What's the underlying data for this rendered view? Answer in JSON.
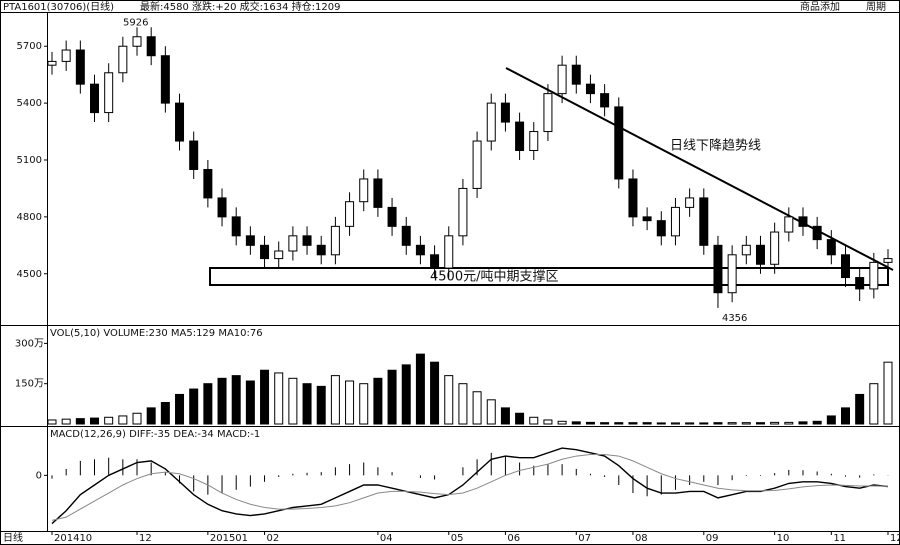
{
  "chart_data": {
    "type": "candlestick",
    "header": "PTA1601(30706)(日线)",
    "header_info": "最新:4580 涨跌:+20 成交:1634 持仓:1209",
    "menu": [
      "商品添加",
      "周期"
    ],
    "x_axis_label": "日线",
    "categories": [
      "201410",
      null,
      null,
      null,
      null,
      null,
      "12",
      null,
      null,
      null,
      null,
      "201501",
      null,
      null,
      null,
      "02",
      null,
      null,
      null,
      null,
      null,
      null,
      null,
      "04",
      null,
      null,
      null,
      null,
      "05",
      null,
      null,
      null,
      "06",
      null,
      null,
      null,
      null,
      "07",
      null,
      null,
      null,
      "08",
      null,
      null,
      null,
      null,
      "09",
      null,
      null,
      null,
      null,
      "10",
      null,
      null,
      null,
      "11",
      null,
      null,
      null,
      "12"
    ],
    "open": [
      5600,
      5620,
      5680,
      5500,
      5350,
      5560,
      5700,
      5750,
      5650,
      5400,
      5200,
      5050,
      4900,
      4800,
      4700,
      4650,
      4580,
      4620,
      4700,
      4650,
      4600,
      4750,
      4880,
      5000,
      4850,
      4750,
      4650,
      4600,
      4530,
      4700,
      4950,
      5200,
      5400,
      5300,
      5150,
      5250,
      5450,
      5600,
      5500,
      5450,
      5380,
      5000,
      4800,
      4780,
      4700,
      4850,
      4900,
      4650,
      4400,
      4600,
      4650,
      4550,
      4720,
      4800,
      4750,
      4680,
      4600,
      4480,
      4420,
      4560
    ],
    "high": [
      5670,
      5730,
      5730,
      5550,
      5610,
      5750,
      5800,
      5800,
      5700,
      5450,
      5250,
      5100,
      4950,
      4850,
      4750,
      4700,
      4670,
      4750,
      4750,
      4700,
      4800,
      4930,
      5050,
      5050,
      4900,
      4800,
      4700,
      4650,
      4750,
      5000,
      5250,
      5450,
      5450,
      5350,
      5300,
      5500,
      5650,
      5650,
      5550,
      5500,
      5430,
      5050,
      4850,
      4830,
      4900,
      4950,
      4950,
      4700,
      4650,
      4700,
      4700,
      4770,
      4850,
      4850,
      4800,
      4730,
      4650,
      4530,
      4610,
      4630
    ],
    "low": [
      5550,
      5570,
      5450,
      5300,
      5300,
      5510,
      5650,
      5600,
      5350,
      5150,
      5000,
      4850,
      4750,
      4650,
      4600,
      4530,
      4530,
      4570,
      4600,
      4550,
      4550,
      4700,
      4830,
      4800,
      4700,
      4600,
      4550,
      4480,
      4480,
      4650,
      4900,
      5150,
      5250,
      5100,
      5100,
      5200,
      5400,
      5450,
      5400,
      5330,
      4950,
      4750,
      4730,
      4650,
      4650,
      4800,
      4600,
      4320,
      4350,
      4550,
      4500,
      4500,
      4670,
      4700,
      4630,
      4550,
      4430,
      4356,
      4370,
      4510
    ],
    "close": [
      5620,
      5680,
      5500,
      5350,
      5560,
      5700,
      5750,
      5650,
      5400,
      5200,
      5050,
      4900,
      4800,
      4700,
      4650,
      4580,
      4620,
      4700,
      4650,
      4600,
      4750,
      4880,
      5000,
      4850,
      4750,
      4650,
      4600,
      4530,
      4700,
      4950,
      5200,
      5400,
      5300,
      5150,
      5250,
      5450,
      5600,
      5500,
      5450,
      5380,
      5000,
      4800,
      4780,
      4700,
      4850,
      4900,
      4650,
      4400,
      4600,
      4650,
      4550,
      4720,
      4800,
      4750,
      4680,
      4600,
      4480,
      4420,
      4560,
      4580
    ],
    "ylim": [
      4235,
      5870
    ],
    "yticks": [
      4500,
      4800,
      5100,
      5400,
      5700
    ],
    "annotations": [
      "5926",
      "4356",
      "日线下降趋势线",
      "4500元/吨中期支撑区"
    ],
    "volume": {
      "title": "VOL(5,10) VOLUME:230 MA5:129 MA10:76",
      "values": [
        15,
        18,
        20,
        22,
        25,
        30,
        40,
        60,
        80,
        110,
        130,
        150,
        170,
        180,
        160,
        200,
        190,
        170,
        150,
        140,
        180,
        160,
        150,
        170,
        200,
        220,
        260,
        230,
        180,
        150,
        120,
        90,
        60,
        40,
        25,
        15,
        10,
        8,
        6,
        5,
        5,
        5,
        5,
        4,
        4,
        4,
        4,
        5,
        5,
        5,
        5,
        6,
        6,
        8,
        10,
        30,
        60,
        110,
        150,
        230
      ],
      "ylim": [
        0,
        320
      ],
      "yticks": [
        {
          "value": 150,
          "label": "150万"
        },
        {
          "value": 300,
          "label": "300万"
        }
      ]
    },
    "macd": {
      "title": "MACD(12,26,9) DIFF:-35 DEA:-34 MACD:-1",
      "diff": [
        -150,
        -110,
        -60,
        -30,
        0,
        20,
        40,
        45,
        20,
        -20,
        -60,
        -90,
        -110,
        -120,
        -125,
        -120,
        -110,
        -100,
        -95,
        -90,
        -70,
        -50,
        -30,
        -30,
        -40,
        -50,
        -60,
        -70,
        -60,
        -30,
        10,
        50,
        60,
        55,
        55,
        70,
        85,
        80,
        70,
        60,
        30,
        -10,
        -40,
        -55,
        -55,
        -50,
        -50,
        -70,
        -60,
        -50,
        -50,
        -40,
        -25,
        -20,
        -20,
        -25,
        -35,
        -40,
        -30,
        -35
      ],
      "dea": [
        -140,
        -130,
        -105,
        -80,
        -55,
        -30,
        -10,
        5,
        10,
        5,
        -10,
        -30,
        -55,
        -75,
        -90,
        -100,
        -105,
        -105,
        -103,
        -100,
        -95,
        -85,
        -70,
        -55,
        -50,
        -50,
        -52,
        -57,
        -60,
        -55,
        -40,
        -20,
        0,
        15,
        25,
        35,
        50,
        60,
        65,
        65,
        60,
        45,
        25,
        5,
        -10,
        -20,
        -30,
        -40,
        -45,
        -48,
        -48,
        -47,
        -42,
        -36,
        -32,
        -30,
        -31,
        -33,
        -33,
        -34
      ],
      "hist": [
        -10,
        20,
        45,
        50,
        55,
        50,
        50,
        40,
        10,
        -25,
        -50,
        -60,
        -55,
        -45,
        -35,
        -20,
        -5,
        5,
        8,
        10,
        25,
        35,
        40,
        25,
        10,
        0,
        -8,
        -13,
        0,
        25,
        50,
        70,
        60,
        40,
        30,
        35,
        35,
        20,
        5,
        -5,
        -30,
        -55,
        -65,
        -60,
        -45,
        -30,
        -20,
        -30,
        -15,
        -2,
        -2,
        7,
        17,
        16,
        12,
        5,
        -4,
        -7,
        3,
        -1
      ],
      "ylim": [
        -170,
        110
      ],
      "yticks": [
        0
      ]
    }
  }
}
